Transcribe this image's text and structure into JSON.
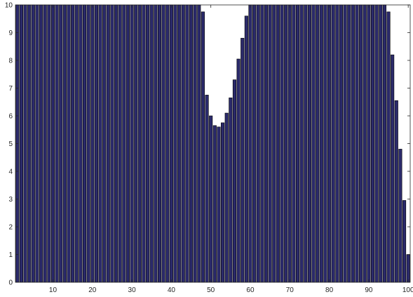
{
  "chart_data": {
    "type": "bar",
    "title": "",
    "xlabel": "",
    "ylabel": "",
    "xlim": [
      0.5,
      100.5
    ],
    "ylim": [
      0,
      10
    ],
    "x_ticks": [
      10,
      20,
      30,
      40,
      50,
      60,
      70,
      80,
      90,
      100
    ],
    "y_ticks": [
      0,
      1,
      2,
      3,
      4,
      5,
      6,
      7,
      8,
      9,
      10
    ],
    "grid": false,
    "legend": "none",
    "bar_color": "#2b2a6b",
    "bar_edge_color": "#000000",
    "x": [
      1,
      2,
      3,
      4,
      5,
      6,
      7,
      8,
      9,
      10,
      11,
      12,
      13,
      14,
      15,
      16,
      17,
      18,
      19,
      20,
      21,
      22,
      23,
      24,
      25,
      26,
      27,
      28,
      29,
      30,
      31,
      32,
      33,
      34,
      35,
      36,
      37,
      38,
      39,
      40,
      41,
      42,
      43,
      44,
      45,
      46,
      47,
      48,
      49,
      50,
      51,
      52,
      53,
      54,
      55,
      56,
      57,
      58,
      59,
      60,
      61,
      62,
      63,
      64,
      65,
      66,
      67,
      68,
      69,
      70,
      71,
      72,
      73,
      74,
      75,
      76,
      77,
      78,
      79,
      80,
      81,
      82,
      83,
      84,
      85,
      86,
      87,
      88,
      89,
      90,
      91,
      92,
      93,
      94,
      95,
      96,
      97,
      98,
      99,
      100
    ],
    "values": [
      10,
      10,
      10,
      10,
      10,
      10,
      10,
      10,
      10,
      10,
      10,
      10,
      10,
      10,
      10,
      10,
      10,
      10,
      10,
      10,
      10,
      10,
      10,
      10,
      10,
      10,
      10,
      10,
      10,
      10,
      10,
      10,
      10,
      10,
      10,
      10,
      10,
      10,
      10,
      10,
      10,
      10,
      10,
      10,
      10,
      10,
      10,
      9.75,
      6.75,
      6.0,
      5.65,
      5.6,
      5.75,
      6.1,
      6.65,
      7.3,
      8.05,
      8.8,
      9.6,
      10,
      10,
      10,
      10,
      10,
      10,
      10,
      10,
      10,
      10,
      10,
      10,
      10,
      10,
      10,
      10,
      10,
      10,
      10,
      10,
      10,
      10,
      10,
      10,
      10,
      10,
      10,
      10,
      10,
      10,
      10,
      10,
      10,
      10,
      10,
      9.75,
      8.2,
      6.55,
      4.8,
      2.95,
      1.0
    ]
  }
}
